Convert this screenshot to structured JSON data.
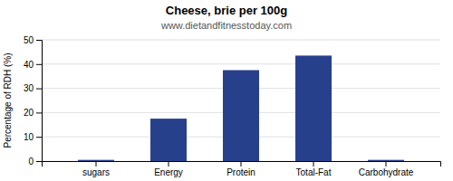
{
  "chart_data": {
    "type": "bar",
    "title": "Cheese, brie per 100g",
    "subtitle": "www.dietandfitnesstoday.com",
    "ylabel": "Percentage of RDH (%)",
    "categories": [
      "sugars",
      "Energy",
      "Protein",
      "Total-Fat",
      "Carbohydrate"
    ],
    "values": [
      0.5,
      17.5,
      37.5,
      43.5,
      0.5
    ],
    "color": "#27408B",
    "ylim": [
      0,
      50
    ],
    "yticks": [
      0,
      10,
      20,
      30,
      40,
      50
    ],
    "grid": true
  }
}
